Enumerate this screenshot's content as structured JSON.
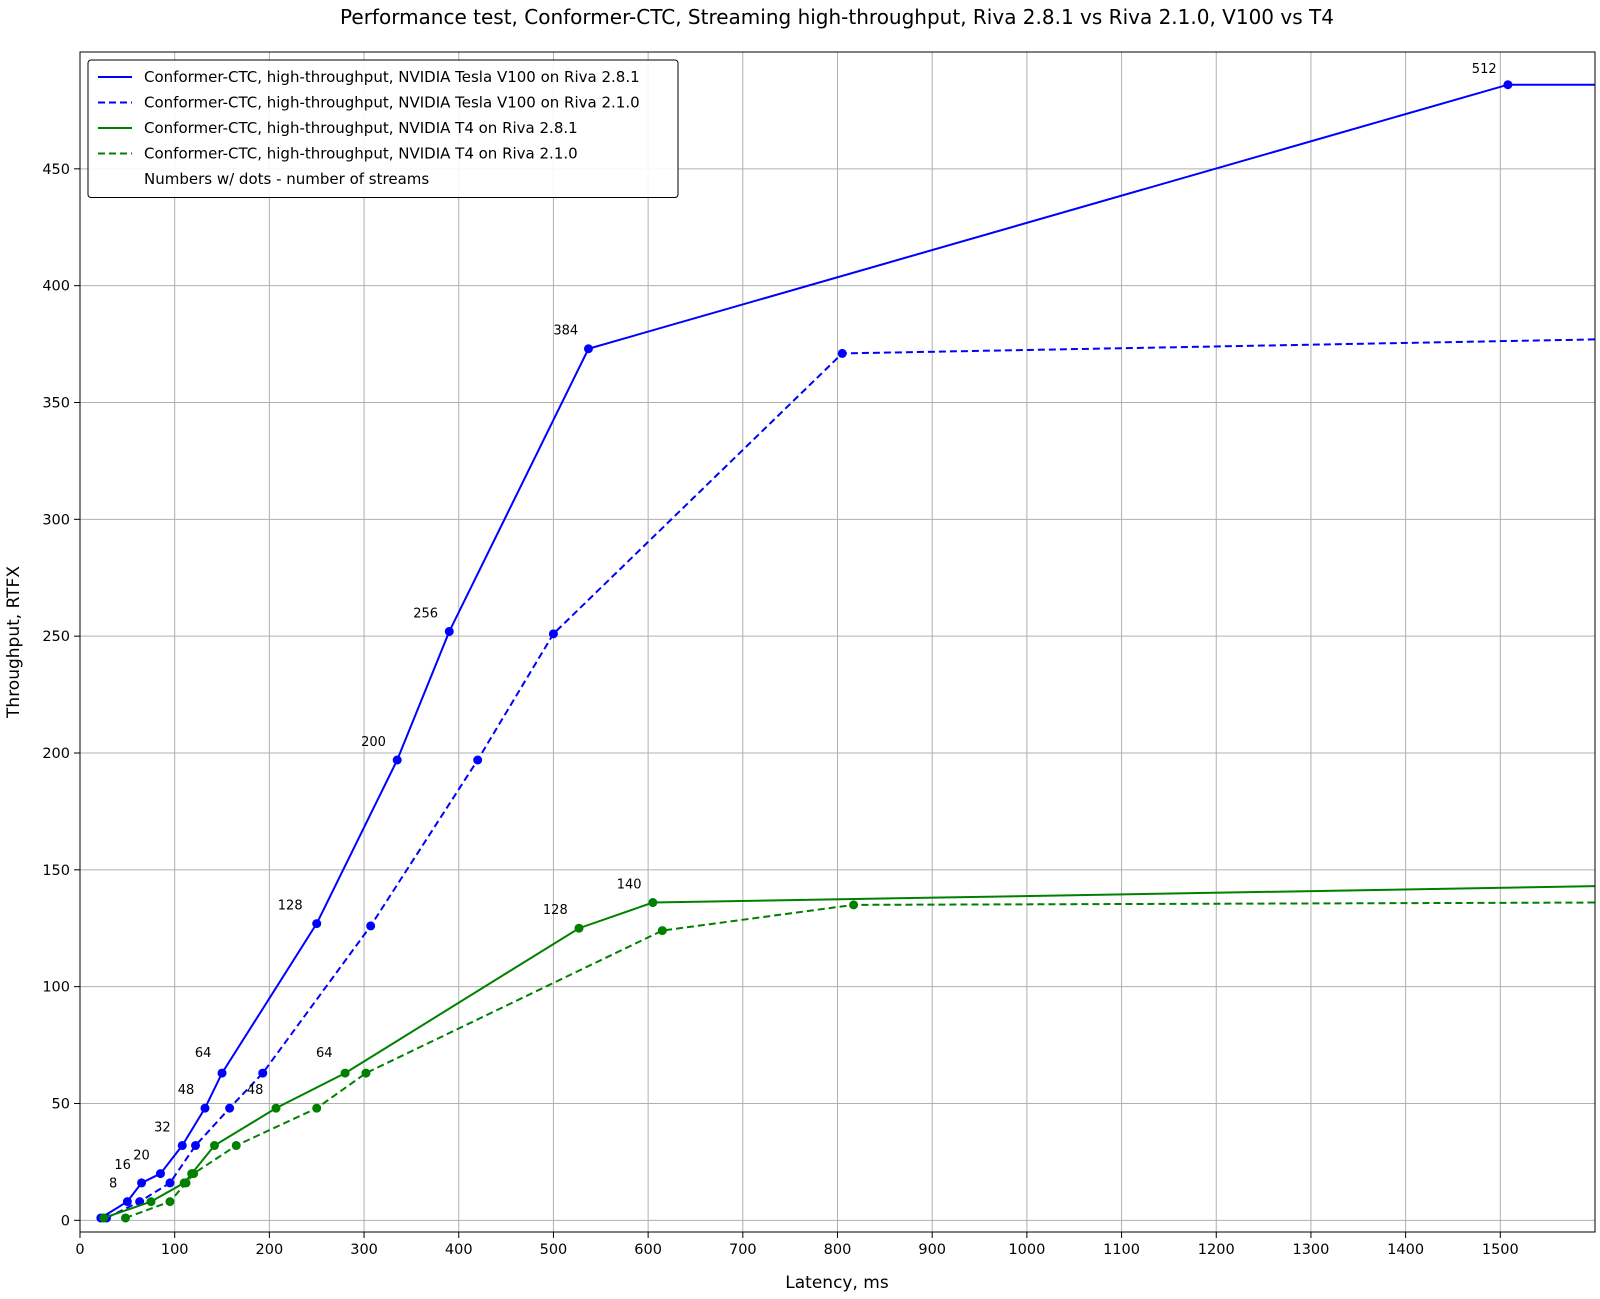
{
  "chart_data": {
    "type": "line",
    "title": "Performance test, Conformer-CTC, Streaming high-throughput, Riva 2.8.1 vs Riva 2.1.0, V100 vs T4",
    "xlabel": "Latency, ms",
    "ylabel": "Throughput, RTFX",
    "xlim": [
      0,
      1600
    ],
    "ylim": [
      -5,
      500
    ],
    "xticks": [
      0,
      100,
      200,
      300,
      400,
      500,
      600,
      700,
      800,
      900,
      1000,
      1100,
      1200,
      1300,
      1400,
      1500
    ],
    "yticks": [
      0,
      50,
      100,
      150,
      200,
      250,
      300,
      350,
      400,
      450
    ],
    "grid": true,
    "legend_position": "top-left",
    "series": [
      {
        "name": "Conformer-CTC, high-throughput, NVIDIA Tesla V100 on Riva 2.8.1",
        "color": "#0000ff",
        "dash": "solid",
        "x": [
          22,
          50,
          65,
          85,
          108,
          132,
          150,
          250,
          335,
          390,
          537,
          1508,
          1600
        ],
        "y": [
          1,
          8,
          16,
          20,
          32,
          48,
          63,
          127,
          197,
          252,
          373,
          486,
          486
        ],
        "markers": [
          true,
          true,
          true,
          true,
          true,
          true,
          true,
          true,
          true,
          true,
          true,
          true,
          false
        ]
      },
      {
        "name": "Conformer-CTC, high-throughput, NVIDIA Tesla V100 on Riva 2.1.0",
        "color": "#0000ff",
        "dash": "dashed",
        "x": [
          28,
          63,
          95,
          122,
          158,
          193,
          307,
          420,
          500,
          805,
          1600
        ],
        "y": [
          1,
          8,
          16,
          32,
          48,
          63,
          126,
          197,
          251,
          371,
          377
        ],
        "markers": [
          true,
          true,
          true,
          true,
          true,
          true,
          true,
          true,
          true,
          true,
          false
        ]
      },
      {
        "name": "Conformer-CTC, high-throughput, NVIDIA T4 on Riva 2.8.1",
        "color": "#008000",
        "dash": "solid",
        "x": [
          25,
          75,
          110,
          118,
          142,
          207,
          280,
          527,
          605,
          1600
        ],
        "y": [
          1,
          8,
          16,
          20,
          32,
          48,
          63,
          125,
          136,
          143
        ],
        "markers": [
          true,
          true,
          true,
          true,
          true,
          true,
          true,
          true,
          true,
          false
        ]
      },
      {
        "name": "Conformer-CTC, high-throughput, NVIDIA T4 on Riva 2.1.0",
        "color": "#008000",
        "dash": "dashed",
        "x": [
          48,
          95,
          112,
          120,
          165,
          250,
          302,
          615,
          817,
          1600
        ],
        "y": [
          1,
          8,
          16,
          20,
          32,
          48,
          63,
          124,
          135,
          136
        ],
        "markers": [
          true,
          true,
          true,
          true,
          true,
          true,
          true,
          true,
          true,
          false
        ]
      }
    ],
    "legend_note": "Numbers w/ dots - number of streams",
    "annotations": [
      {
        "text": "8",
        "x": 35,
        "y": 14
      },
      {
        "text": "16",
        "x": 45,
        "y": 22
      },
      {
        "text": "20",
        "x": 65,
        "y": 26
      },
      {
        "text": "32",
        "x": 87,
        "y": 38
      },
      {
        "text": "48",
        "x": 112,
        "y": 54
      },
      {
        "text": "64",
        "x": 130,
        "y": 70
      },
      {
        "text": "128",
        "x": 222,
        "y": 133
      },
      {
        "text": "200",
        "x": 310,
        "y": 203
      },
      {
        "text": "256",
        "x": 365,
        "y": 258
      },
      {
        "text": "384",
        "x": 513,
        "y": 379
      },
      {
        "text": "512",
        "x": 1483,
        "y": 491
      },
      {
        "text": "48",
        "x": 185,
        "y": 54
      },
      {
        "text": "64",
        "x": 258,
        "y": 70
      },
      {
        "text": "128",
        "x": 502,
        "y": 131
      },
      {
        "text": "140",
        "x": 580,
        "y": 142
      }
    ]
  }
}
